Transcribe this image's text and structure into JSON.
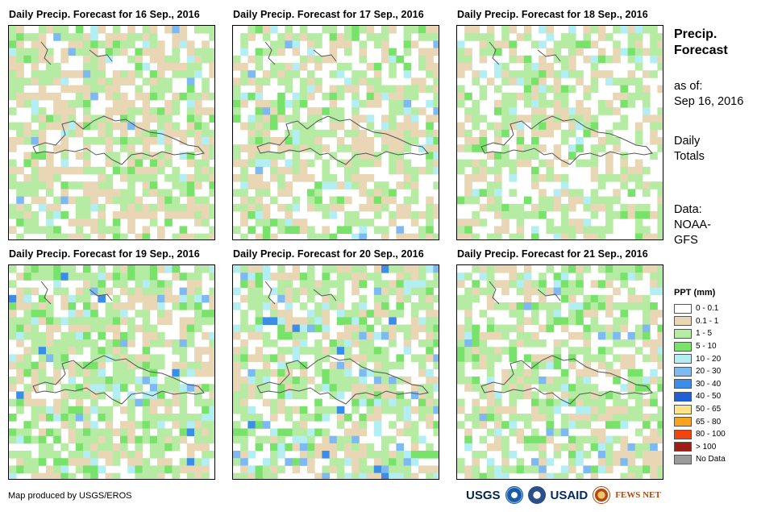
{
  "panels": [
    {
      "title": "Daily Precip. Forecast for 16 Sep., 2016"
    },
    {
      "title": "Daily Precip. Forecast for 17 Sep., 2016"
    },
    {
      "title": "Daily Precip. Forecast for 18 Sep., 2016"
    },
    {
      "title": "Daily Precip. Forecast for 19 Sep., 2016"
    },
    {
      "title": "Daily Precip. Forecast for 20 Sep., 2016"
    },
    {
      "title": "Daily Precip. Forecast for 21 Sep., 2016"
    }
  ],
  "side": {
    "title_line1": "Precip.",
    "title_line2": "Forecast",
    "asof_line1": "as of:",
    "asof_line2": "Sep 16, 2016",
    "daily_line1": "Daily",
    "daily_line2": "Totals",
    "data_line1": "Data:",
    "data_line2": "NOAA-",
    "data_line3": "GFS"
  },
  "legend": {
    "title": "PPT (mm)",
    "items": [
      {
        "label": "0 - 0.1",
        "color": "#ffffff"
      },
      {
        "label": "0.1 - 1",
        "color": "#e8d6b5"
      },
      {
        "label": "1 - 5",
        "color": "#b6eba4"
      },
      {
        "label": "5 - 10",
        "color": "#78e26a"
      },
      {
        "label": "10 - 20",
        "color": "#b3eef2"
      },
      {
        "label": "20 - 30",
        "color": "#7eb9f2"
      },
      {
        "label": "30 - 40",
        "color": "#3b8de8"
      },
      {
        "label": "40 - 50",
        "color": "#1f5fd8"
      },
      {
        "label": "50 - 65",
        "color": "#fde38a"
      },
      {
        "label": "65 - 80",
        "color": "#f9a21f"
      },
      {
        "label": "80 - 100",
        "color": "#f2440e"
      },
      {
        "label": "> 100",
        "color": "#a01c14"
      },
      {
        "label": "No Data",
        "color": "#9a9a9a"
      }
    ]
  },
  "footer": {
    "credit": "Map produced by USGS/EROS",
    "logo_usgs": "USGS",
    "logo_usaid": "USAID",
    "logo_fews": "FEWS NET"
  }
}
